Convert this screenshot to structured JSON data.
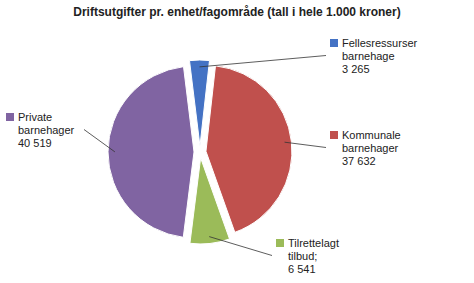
{
  "chart_data": {
    "type": "pie",
    "title": "Driftsutgifter pr. enhet/fagområde (tall i hele 1.000 kroner)",
    "categories": [
      "Fellesressurser\nbarnehage",
      "Kommunale\nbarnehager",
      "Tilrettelagt\ntilbud;",
      "Private\nbarnehager"
    ],
    "values": [
      3265,
      37632,
      6541,
      40519
    ],
    "value_labels": [
      "3 265",
      "37 632",
      "6 541",
      "40 519"
    ],
    "colors": [
      "#4472C4",
      "#C0504D",
      "#9BBB59",
      "#8064A2"
    ],
    "data_labels": true
  }
}
